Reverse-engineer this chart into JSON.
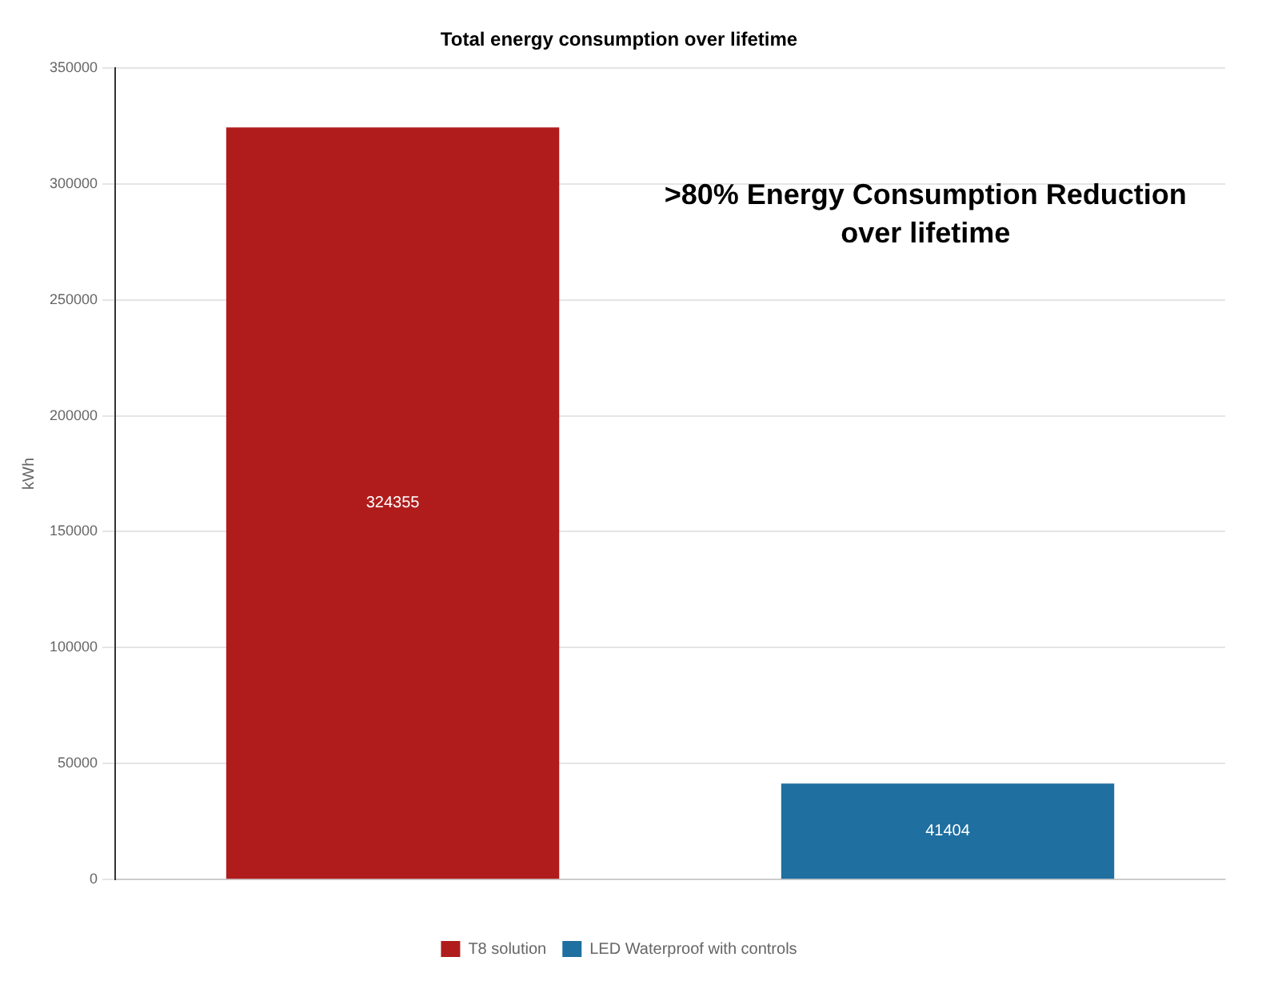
{
  "chart_data": {
    "type": "bar",
    "title": "Total energy consumption over lifetime",
    "ylabel": "kWh",
    "categories": [
      null,
      null
    ],
    "series": [
      {
        "name": "T8 solution",
        "color": "#b01c1c",
        "values": [
          324355,
          null
        ]
      },
      {
        "name": "LED Waterproof with controls",
        "color": "#1f6fa0",
        "values": [
          null,
          41404
        ]
      }
    ],
    "ylim": [
      0,
      350000
    ],
    "yticks": [
      0,
      50000,
      100000,
      150000,
      200000,
      250000,
      300000,
      350000
    ],
    "grid": "y",
    "legend": "bottom",
    "data_labels": true,
    "annotations": [
      ">80% Energy Consumption Reduction over lifetime"
    ]
  }
}
